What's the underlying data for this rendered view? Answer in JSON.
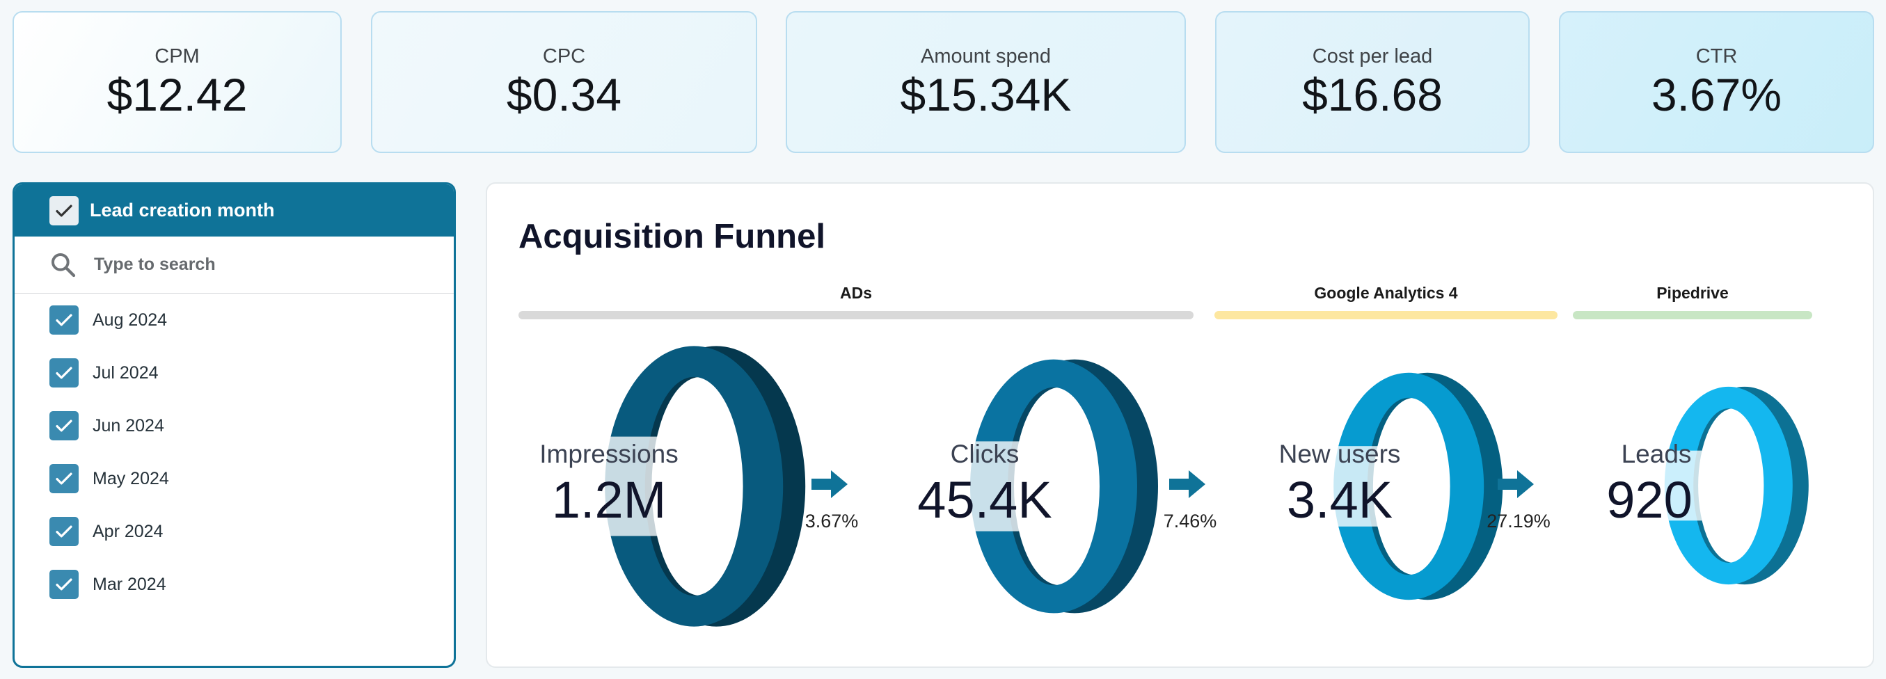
{
  "kpis": [
    {
      "label": "CPM",
      "value": "$12.42"
    },
    {
      "label": "CPC",
      "value": "$0.34"
    },
    {
      "label": "Amount spend",
      "value": "$15.34K"
    },
    {
      "label": "Cost per lead",
      "value": "$16.68"
    },
    {
      "label": "CTR",
      "value": "3.67%"
    }
  ],
  "filter": {
    "title": "Lead creation month",
    "search_placeholder": "Type to search",
    "months": [
      "Aug 2024",
      "Jul 2024",
      "Jun 2024",
      "May 2024",
      "Apr 2024",
      "Mar 2024"
    ],
    "header_color": "#0f7398",
    "checkbox_color": "#3a8ab0"
  },
  "funnel": {
    "title": "Acquisition Funnel",
    "sources": [
      {
        "label": "ADs",
        "color": "#d9d9d9"
      },
      {
        "label": "Google Analytics 4",
        "color": "#fde7a0"
      },
      {
        "label": "Pipedrive",
        "color": "#c8e6c4"
      }
    ],
    "stages": [
      {
        "label": "Impressions",
        "value": "1.2M",
        "color": "#085a7e"
      },
      {
        "label": "Clicks",
        "value": "45.4K",
        "color": "#0a73a1"
      },
      {
        "label": "New users",
        "value": "3.4K",
        "color": "#069bd0"
      },
      {
        "label": "Leads",
        "value": "920",
        "color": "#14b7ef"
      }
    ],
    "conversions": [
      "3.67%",
      "7.46%",
      "27.19%"
    ],
    "arrow_color": "#0f7398"
  }
}
